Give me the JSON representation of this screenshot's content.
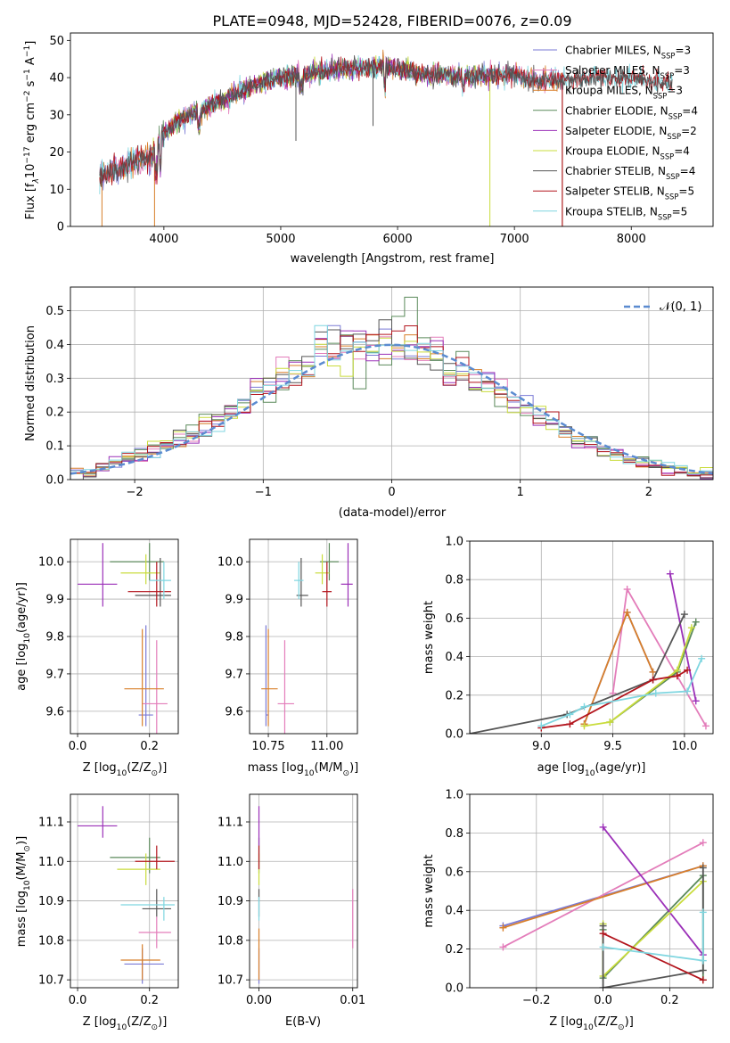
{
  "colors": {
    "Chabrier MILES": "#7a7ad6",
    "Salpeter MILES": "#e37dba",
    "Kroupa MILES": "#d87f2a",
    "Chabrier ELODIE": "#5b8a5b",
    "Salpeter ELODIE": "#9b30b8",
    "Kroupa ELODIE": "#c9dc3c",
    "Chabrier STELIB": "#555555",
    "Salpeter STELIB": "#b3151d",
    "Kroupa STELIB": "#7fd6e0",
    "gauss": "#5b8bd0"
  },
  "chart_data": [
    {
      "id": "spectrum",
      "type": "line",
      "title": "PLATE=0948, MJD=52428, FIBERID=0076, z=0.09",
      "xlabel": "wavelength [Angstrom, rest frame]",
      "ylabel_main": "Flux [f",
      "ylabel_sub": "λ",
      "ylabel_rest": "10",
      "ylabel_e1": "−17",
      "ylabel_mid": " erg cm",
      "ylabel_e2": "−2",
      "ylabel_mid2": " s",
      "ylabel_e3": "−1",
      "ylabel_mid3": " A",
      "ylabel_e4": "−1",
      "ylabel_end": "]",
      "xlim": [
        3200,
        8700
      ],
      "ylim": [
        0,
        52
      ],
      "xticks": [
        4000,
        5000,
        6000,
        7000,
        8000
      ],
      "yticks": [
        0,
        10,
        20,
        30,
        40,
        50
      ],
      "legend_position": "top-right",
      "continuum_x": [
        3450,
        3550,
        3700,
        3900,
        4000,
        4150,
        4300,
        4500,
        4700,
        4900,
        5100,
        5300,
        5600,
        5900,
        6200,
        6500,
        6800,
        7000,
        7200,
        7500,
        7800,
        8100,
        8350
      ],
      "continuum_y": [
        13,
        15,
        17,
        19,
        25,
        29,
        31,
        34,
        37,
        39.5,
        40.5,
        41.5,
        42.5,
        43,
        41,
        40.5,
        40.5,
        41,
        39,
        39.5,
        40,
        39.5,
        38
      ],
      "series": [
        {
          "name": "Chabrier MILES",
          "nssp": "3",
          "x_range": [
            3450,
            7420
          ]
        },
        {
          "name": "Salpeter MILES",
          "nssp": "3",
          "x_range": [
            3450,
            7420
          ]
        },
        {
          "name": "Kroupa MILES",
          "nssp": "3",
          "x_range": [
            3450,
            7420
          ]
        },
        {
          "name": "Chabrier ELODIE",
          "nssp": "4",
          "x_range": [
            3900,
            6800
          ]
        },
        {
          "name": "Salpeter ELODIE",
          "nssp": "2",
          "x_range": [
            3900,
            6800
          ]
        },
        {
          "name": "Kroupa ELODIE",
          "nssp": "4",
          "x_range": [
            3900,
            6800
          ]
        },
        {
          "name": "Chabrier STELIB",
          "nssp": "4",
          "x_range": [
            3450,
            8350
          ]
        },
        {
          "name": "Salpeter STELIB",
          "nssp": "5",
          "x_range": [
            3450,
            8350
          ]
        },
        {
          "name": "Kroupa STELIB",
          "nssp": "5",
          "x_range": [
            3450,
            8350
          ]
        }
      ],
      "legend_sub": "SSP"
    },
    {
      "id": "residuals",
      "type": "line",
      "xlabel": "(data-model)/error",
      "ylabel": "Normed distribution",
      "xlim": [
        -2.5,
        2.5
      ],
      "ylim": [
        0,
        0.57
      ],
      "xticks": [
        -2,
        -1,
        0,
        1,
        2
      ],
      "yticks": [
        0,
        0.1,
        0.2,
        0.3,
        0.4,
        0.5
      ],
      "legend_label": "𝒩(0, 1)",
      "legend_position": "top-right",
      "bin_width": 0.1,
      "series_name": "𝒩(0, 1)"
    },
    {
      "id": "z-age",
      "type": "scatter",
      "xlabel_pre": "Z [log",
      "xlabel_sub": "10",
      "xlabel_post": "(Z/Z",
      "xlabel_sun": "⊙",
      "xlabel_end": ")]",
      "ylabel_pre": "age  [log",
      "ylabel_sub": "10",
      "ylabel_post": "(age/yr)]",
      "xlim": [
        -0.02,
        0.28
      ],
      "ylim": [
        9.54,
        10.06
      ],
      "xticks": [
        0.0,
        0.2
      ],
      "yticks": [
        9.6,
        9.7,
        9.8,
        9.9,
        10.0
      ],
      "points": [
        {
          "name": "Chabrier MILES",
          "x": 0.19,
          "y": 9.59,
          "xerr": [
            0.17,
            0.21
          ],
          "yerr": [
            9.56,
            9.83
          ]
        },
        {
          "name": "Salpeter MILES",
          "x": 0.22,
          "y": 9.62,
          "xerr": [
            0.18,
            0.25
          ],
          "yerr": [
            9.54,
            9.79
          ]
        },
        {
          "name": "Kroupa MILES",
          "x": 0.18,
          "y": 9.66,
          "xerr": [
            0.13,
            0.24
          ],
          "yerr": [
            9.56,
            9.82
          ]
        },
        {
          "name": "Chabrier ELODIE",
          "x": 0.2,
          "y": 10.0,
          "xerr": [
            0.09,
            0.24
          ],
          "yerr": [
            9.95,
            10.05
          ]
        },
        {
          "name": "Salpeter ELODIE",
          "x": 0.07,
          "y": 9.94,
          "xerr": [
            0.0,
            0.11
          ],
          "yerr": [
            9.88,
            10.05
          ]
        },
        {
          "name": "Kroupa ELODIE",
          "x": 0.19,
          "y": 9.97,
          "xerr": [
            0.12,
            0.23
          ],
          "yerr": [
            9.94,
            10.02
          ]
        },
        {
          "name": "Chabrier STELIB",
          "x": 0.23,
          "y": 9.91,
          "xerr": [
            0.16,
            0.26
          ],
          "yerr": [
            9.88,
            10.01
          ]
        },
        {
          "name": "Salpeter STELIB",
          "x": 0.22,
          "y": 9.92,
          "xerr": [
            0.14,
            0.26
          ],
          "yerr": [
            9.88,
            10.0
          ]
        },
        {
          "name": "Kroupa STELIB",
          "x": 0.24,
          "y": 9.95,
          "xerr": [
            0.2,
            0.26
          ],
          "yerr": [
            9.9,
            10.0
          ]
        }
      ]
    },
    {
      "id": "mass-age",
      "type": "scatter",
      "xlabel_pre": "mass [log",
      "xlabel_sub": "10",
      "xlabel_post": "(M/M",
      "xlabel_sun": "⊙",
      "xlabel_end": ")]",
      "xlim": [
        10.67,
        11.13
      ],
      "ylim": [
        9.54,
        10.06
      ],
      "xticks": [
        10.75,
        11.0
      ],
      "yticks": [
        9.6,
        9.7,
        9.8,
        9.9,
        10.0
      ],
      "points": [
        {
          "name": "Chabrier MILES",
          "x": 10.74,
          "y": 9.59,
          "xerr": [
            10.74,
            10.75
          ],
          "yerr": [
            9.56,
            9.83
          ]
        },
        {
          "name": "Salpeter MILES",
          "x": 10.82,
          "y": 9.62,
          "xerr": [
            10.79,
            10.86
          ],
          "yerr": [
            9.54,
            9.79
          ]
        },
        {
          "name": "Kroupa MILES",
          "x": 10.75,
          "y": 9.66,
          "xerr": [
            10.72,
            10.79
          ],
          "yerr": [
            9.56,
            9.82
          ]
        },
        {
          "name": "Chabrier ELODIE",
          "x": 11.01,
          "y": 10.0,
          "xerr": [
            10.97,
            11.05
          ],
          "yerr": [
            9.95,
            10.05
          ]
        },
        {
          "name": "Salpeter ELODIE",
          "x": 11.09,
          "y": 9.94,
          "xerr": [
            11.06,
            11.11
          ],
          "yerr": [
            9.88,
            10.05
          ]
        },
        {
          "name": "Kroupa ELODIE",
          "x": 10.98,
          "y": 9.97,
          "xerr": [
            10.95,
            11.01
          ],
          "yerr": [
            9.94,
            10.02
          ]
        },
        {
          "name": "Chabrier STELIB",
          "x": 10.89,
          "y": 9.91,
          "xerr": [
            10.87,
            10.92
          ],
          "yerr": [
            9.88,
            10.01
          ]
        },
        {
          "name": "Salpeter STELIB",
          "x": 11.0,
          "y": 9.92,
          "xerr": [
            10.98,
            11.02
          ],
          "yerr": [
            9.88,
            10.0
          ]
        },
        {
          "name": "Kroupa STELIB",
          "x": 10.88,
          "y": 9.95,
          "xerr": [
            10.86,
            10.9
          ],
          "yerr": [
            9.9,
            10.0
          ]
        }
      ]
    },
    {
      "id": "age-weight",
      "type": "line",
      "xlabel_pre": "age  [log",
      "xlabel_sub": "10",
      "xlabel_post": "(age/yr)]",
      "ylabel": "mass weight",
      "xlim": [
        8.5,
        10.2
      ],
      "ylim": [
        0,
        1.0
      ],
      "xticks": [
        9.0,
        9.5,
        10.0
      ],
      "yticks": [
        0.0,
        0.2,
        0.4,
        0.6,
        0.8,
        1.0
      ],
      "series": [
        {
          "name": "Chabrier MILES",
          "x": [
            9.3,
            9.6,
            9.78
          ],
          "y": [
            0.05,
            0.63,
            0.32
          ]
        },
        {
          "name": "Salpeter MILES",
          "x": [
            9.5,
            9.6,
            10.15
          ],
          "y": [
            0.21,
            0.75,
            0.04
          ]
        },
        {
          "name": "Kroupa MILES",
          "x": [
            9.3,
            9.6,
            9.78
          ],
          "y": [
            0.05,
            0.63,
            0.32
          ]
        },
        {
          "name": "Chabrier ELODIE",
          "x": [
            9.48,
            9.95,
            10.08
          ],
          "y": [
            0.06,
            0.32,
            0.58
          ]
        },
        {
          "name": "Salpeter ELODIE",
          "x": [
            9.9,
            10.08
          ],
          "y": [
            0.83,
            0.17
          ]
        },
        {
          "name": "Kroupa ELODIE",
          "x": [
            9.3,
            9.48,
            9.95,
            10.05
          ],
          "y": [
            0.04,
            0.06,
            0.33,
            0.55
          ]
        },
        {
          "name": "Chabrier STELIB",
          "x": [
            8.5,
            9.18,
            9.78,
            10.0
          ],
          "y": [
            0.0,
            0.1,
            0.28,
            0.62
          ]
        },
        {
          "name": "Salpeter STELIB",
          "x": [
            9.0,
            9.2,
            9.78,
            9.95,
            10.02
          ],
          "y": [
            0.03,
            0.05,
            0.28,
            0.3,
            0.33
          ]
        },
        {
          "name": "Kroupa STELIB",
          "x": [
            9.0,
            9.2,
            9.3,
            9.8,
            10.02,
            10.12
          ],
          "y": [
            0.04,
            0.1,
            0.14,
            0.21,
            0.22,
            0.39
          ]
        }
      ]
    },
    {
      "id": "z-mass",
      "type": "scatter",
      "xlabel_pre": "Z [log",
      "xlabel_sub": "10",
      "xlabel_post": "(Z/Z",
      "xlabel_sun": "⊙",
      "xlabel_end": ")]",
      "ylabel_pre": "mass [log",
      "ylabel_sub": "10",
      "ylabel_post": "(M/M",
      "ylabel_sun": "⊙",
      "ylabel_end": ")]",
      "xlim": [
        -0.02,
        0.28
      ],
      "ylim": [
        10.68,
        11.17
      ],
      "xticks": [
        0.0,
        0.2
      ],
      "yticks": [
        10.7,
        10.8,
        10.9,
        11.0,
        11.1
      ],
      "points": [
        {
          "name": "Chabrier MILES",
          "x": 0.18,
          "y": 10.74,
          "xerr": [
            0.13,
            0.24
          ],
          "yerr": [
            10.69,
            10.78
          ]
        },
        {
          "name": "Salpeter MILES",
          "x": 0.22,
          "y": 10.82,
          "xerr": [
            0.17,
            0.26
          ],
          "yerr": [
            10.78,
            10.86
          ]
        },
        {
          "name": "Kroupa MILES",
          "x": 0.18,
          "y": 10.75,
          "xerr": [
            0.12,
            0.23
          ],
          "yerr": [
            10.7,
            10.79
          ]
        },
        {
          "name": "Chabrier ELODIE",
          "x": 0.2,
          "y": 11.01,
          "xerr": [
            0.09,
            0.23
          ],
          "yerr": [
            10.97,
            11.06
          ]
        },
        {
          "name": "Salpeter ELODIE",
          "x": 0.07,
          "y": 11.09,
          "xerr": [
            0.0,
            0.11
          ],
          "yerr": [
            11.06,
            11.14
          ]
        },
        {
          "name": "Kroupa ELODIE",
          "x": 0.19,
          "y": 10.98,
          "xerr": [
            0.11,
            0.23
          ],
          "yerr": [
            10.94,
            11.02
          ]
        },
        {
          "name": "Chabrier STELIB",
          "x": 0.22,
          "y": 10.88,
          "xerr": [
            0.18,
            0.26
          ],
          "yerr": [
            10.86,
            10.93
          ]
        },
        {
          "name": "Salpeter STELIB",
          "x": 0.22,
          "y": 11.0,
          "xerr": [
            0.16,
            0.27
          ],
          "yerr": [
            10.98,
            11.04
          ]
        },
        {
          "name": "Kroupa STELIB",
          "x": 0.24,
          "y": 10.89,
          "xerr": [
            0.12,
            0.27
          ],
          "yerr": [
            10.85,
            10.91
          ]
        }
      ]
    },
    {
      "id": "ebv-mass",
      "type": "scatter",
      "xlabel": "E(B-V)",
      "xlim": [
        -0.001,
        0.0105
      ],
      "ylim": [
        10.68,
        11.17
      ],
      "xticks": [
        0.0,
        0.01
      ],
      "yticks": [
        10.7,
        10.8,
        10.9,
        11.0,
        11.1
      ],
      "points": [
        {
          "name": "Chabrier MILES",
          "x": 0.0,
          "y": 10.74,
          "yerr": [
            10.69,
            10.78
          ]
        },
        {
          "name": "Salpeter MILES",
          "x": 0.01,
          "y": 10.82,
          "yerr": [
            10.78,
            10.93
          ]
        },
        {
          "name": "Kroupa MILES",
          "x": 0.0,
          "y": 10.75,
          "yerr": [
            10.7,
            10.83
          ]
        },
        {
          "name": "Chabrier ELODIE",
          "x": 0.0,
          "y": 11.01,
          "yerr": [
            10.97,
            11.06
          ]
        },
        {
          "name": "Salpeter ELODIE",
          "x": 0.0,
          "y": 11.09,
          "yerr": [
            11.04,
            11.14
          ]
        },
        {
          "name": "Kroupa ELODIE",
          "x": 0.0,
          "y": 10.98,
          "yerr": [
            10.94,
            11.02
          ]
        },
        {
          "name": "Chabrier STELIB",
          "x": 0.0,
          "y": 10.88,
          "yerr": [
            10.86,
            10.93
          ]
        },
        {
          "name": "Salpeter STELIB",
          "x": 0.0,
          "y": 11.0,
          "yerr": [
            10.98,
            11.04
          ]
        },
        {
          "name": "Kroupa STELIB",
          "x": 0.0,
          "y": 10.89,
          "yerr": [
            10.85,
            10.91
          ]
        }
      ]
    },
    {
      "id": "z-weight",
      "type": "line",
      "xlabel_pre": "Z [log",
      "xlabel_sub": "10",
      "xlabel_post": "(Z/Z",
      "xlabel_sun": "⊙",
      "xlabel_end": ")]",
      "ylabel": "mass weight",
      "xlim": [
        -0.4,
        0.33
      ],
      "ylim": [
        0,
        1.0
      ],
      "xticks": [
        -0.2,
        0.0,
        0.2
      ],
      "yticks": [
        0.0,
        0.2,
        0.4,
        0.6,
        0.8,
        1.0
      ],
      "series": [
        {
          "name": "Chabrier MILES",
          "x": [
            -0.3,
            0.3
          ],
          "y": [
            0.32,
            0.63
          ]
        },
        {
          "name": "Salpeter MILES",
          "x": [
            -0.3,
            0.3
          ],
          "y": [
            0.21,
            0.75
          ]
        },
        {
          "name": "Kroupa MILES",
          "x": [
            -0.3,
            0.3
          ],
          "y": [
            0.31,
            0.63
          ]
        },
        {
          "name": "Chabrier ELODIE",
          "x": [
            0.0,
            0.0,
            0.3,
            0.3
          ],
          "y": [
            0.3,
            0.05,
            0.58,
            0.04
          ]
        },
        {
          "name": "Salpeter ELODIE",
          "x": [
            0.0,
            0.3
          ],
          "y": [
            0.83,
            0.17
          ]
        },
        {
          "name": "Kroupa ELODIE",
          "x": [
            0.0,
            0.0,
            0.3
          ],
          "y": [
            0.33,
            0.06,
            0.55
          ]
        },
        {
          "name": "Chabrier STELIB",
          "x": [
            0.0,
            0.0,
            0.3,
            0.3
          ],
          "y": [
            0.32,
            0.0,
            0.09,
            0.62
          ]
        },
        {
          "name": "Salpeter STELIB",
          "x": [
            0.0,
            0.3
          ],
          "y": [
            0.28,
            0.04
          ]
        },
        {
          "name": "Kroupa STELIB",
          "x": [
            0.0,
            0.3,
            0.3
          ],
          "y": [
            0.21,
            0.14,
            0.39
          ]
        }
      ]
    }
  ]
}
